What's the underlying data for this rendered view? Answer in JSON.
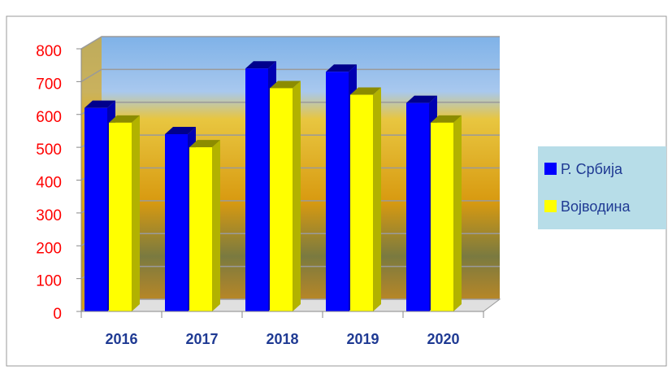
{
  "chart_data": {
    "type": "bar3d",
    "categories": [
      "2016",
      "2017",
      "2018",
      "2019",
      "2020"
    ],
    "series": [
      {
        "name": "Р. Србија",
        "color": "#0000ff",
        "values": [
          620,
          540,
          740,
          730,
          635
        ]
      },
      {
        "name": "Војводина",
        "color": "#ffff00",
        "values": [
          575,
          500,
          680,
          660,
          575
        ]
      }
    ],
    "ylim": [
      0,
      800
    ],
    "yticks": [
      0,
      100,
      200,
      300,
      400,
      500,
      600,
      700,
      800
    ],
    "grid": true,
    "legend": "right"
  }
}
